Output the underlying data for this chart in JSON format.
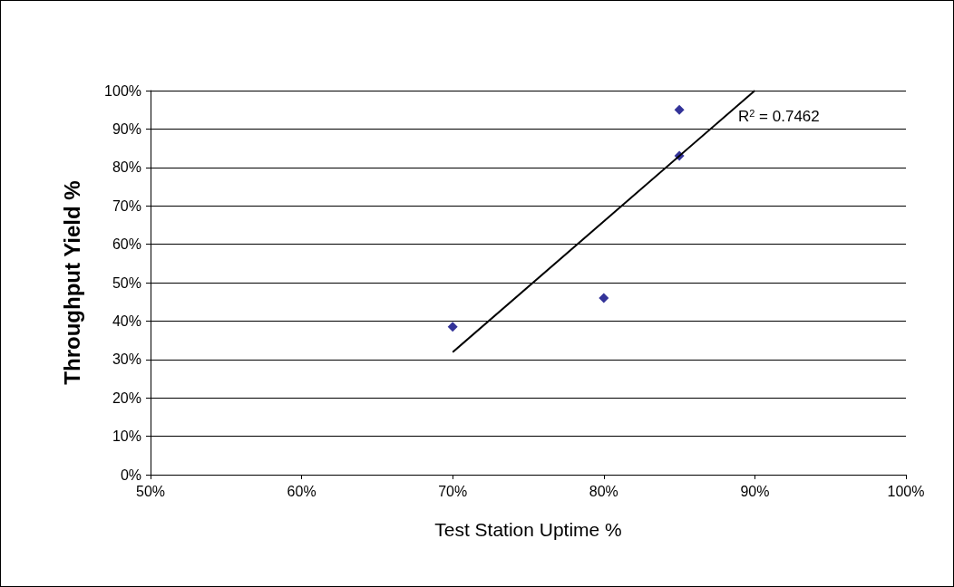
{
  "chart_data": {
    "type": "scatter",
    "xlabel": "Test Station Uptime %",
    "ylabel": "Throughput Yield %",
    "series": [
      {
        "color": "#000080",
        "marker": "diamond",
        "x": [
          70,
          80,
          85,
          85
        ],
        "values": [
          38.5,
          46,
          83,
          95
        ]
      },
      {
        "type": "line",
        "color": "#000000",
        "marker": "none",
        "line_style": "solid",
        "x": [
          70,
          90
        ],
        "values": [
          31.9,
          100
        ]
      }
    ],
    "xlim": [
      50,
      100
    ],
    "xticks": [
      {
        "value": 50,
        "label": "50%"
      },
      {
        "value": 60,
        "label": "60%"
      },
      {
        "value": 70,
        "label": "70%"
      },
      {
        "value": 80,
        "label": "80%"
      },
      {
        "value": 90,
        "label": "90%"
      },
      {
        "value": 100,
        "label": "100%"
      }
    ],
    "ylim": [
      0,
      100
    ],
    "yticks": [
      {
        "value": 0,
        "label": "0%"
      },
      {
        "value": 10,
        "label": "10%"
      },
      {
        "value": 20,
        "label": "20%"
      },
      {
        "value": 30,
        "label": "30%"
      },
      {
        "value": 40,
        "label": "40%"
      },
      {
        "value": 50,
        "label": "50%"
      },
      {
        "value": 60,
        "label": "60%"
      },
      {
        "value": 70,
        "label": "70%"
      },
      {
        "value": 80,
        "label": "80%"
      },
      {
        "value": 90,
        "label": "90%"
      },
      {
        "value": 100,
        "label": "100%"
      }
    ],
    "grid": "y",
    "annotations": [
      "R$^{2}$ = 0.7462"
    ]
  }
}
